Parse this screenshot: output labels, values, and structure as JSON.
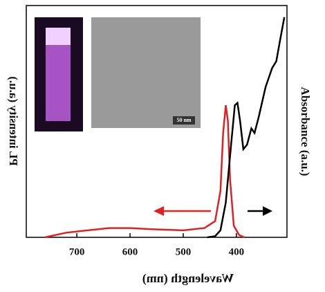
{
  "chart_data": {
    "type": "line",
    "x_label": "Wavelength (nm)",
    "y_label": "PL intensity (a.u.)",
    "y2_label": "Absorbance (a.u.)",
    "inset_scale_label": "50 nm",
    "xlim": [
      795,
      305
    ],
    "xticks": [
      700,
      600,
      500,
      400
    ],
    "ylim": [
      0,
      1
    ],
    "y2lim": [
      0,
      1
    ],
    "series": [
      {
        "color": "#e02020",
        "x": [
          760,
          720,
          680,
          640,
          600,
          560,
          500,
          460,
          440,
          430,
          425,
          420,
          416,
          412,
          405,
          395,
          385
        ],
        "values": [
          0.0,
          0.02,
          0.03,
          0.04,
          0.04,
          0.035,
          0.03,
          0.04,
          0.07,
          0.2,
          0.45,
          0.57,
          0.5,
          0.25,
          0.05,
          0.01,
          0.0
        ]
      },
      {
        "color": "#000000",
        "axis": "y2",
        "x": [
          455,
          440,
          430,
          420,
          410,
          403,
          398,
          393,
          387,
          380,
          372,
          366,
          358,
          345,
          333,
          325,
          318,
          310
        ],
        "values": [
          0.0,
          0.005,
          0.03,
          0.15,
          0.4,
          0.57,
          0.58,
          0.5,
          0.38,
          0.4,
          0.47,
          0.45,
          0.52,
          0.65,
          0.73,
          0.76,
          0.85,
          0.95
        ]
      }
    ]
  }
}
